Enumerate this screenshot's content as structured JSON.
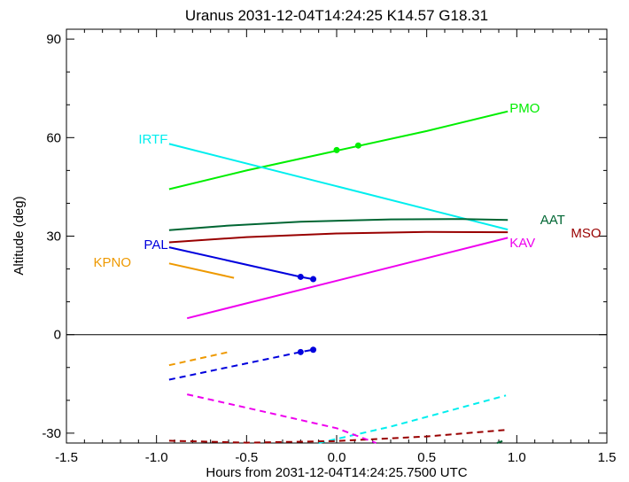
{
  "chart_data": {
    "type": "line",
    "title": "Uranus 2031-12-04T14:24:25  K14.57  G18.31",
    "xlabel": "Hours from 2031-12-04T14:24:25.7500 UTC",
    "ylabel": "Altitude (deg)",
    "xlim": [
      -1.5,
      1.5
    ],
    "ylim": [
      -33,
      93
    ],
    "xticks": [
      -1.5,
      -1.0,
      -0.5,
      0.0,
      0.5,
      1.0,
      1.5
    ],
    "xtick_labels": [
      "-1.5",
      "-1.0",
      "-0.5",
      "0.0",
      "0.5",
      "1.0",
      "1.5"
    ],
    "yticks": [
      -30,
      0,
      30,
      60,
      90
    ],
    "ytick_labels": [
      "-30",
      "0",
      "30",
      "60",
      "90"
    ],
    "zero_line": 0,
    "series": [
      {
        "name": "PMO",
        "color": "#00ee00",
        "solid": [
          [
            -0.93,
            44.3
          ],
          [
            -0.5,
            50.0
          ],
          [
            0.0,
            56.0
          ],
          [
            0.5,
            62.0
          ],
          [
            0.95,
            68.0
          ]
        ],
        "dashed": [],
        "markers": [
          [
            0.0,
            56.2
          ],
          [
            0.12,
            57.6
          ]
        ],
        "label": "PMO",
        "label_pos": [
          0.96,
          69.0
        ]
      },
      {
        "name": "IRTF",
        "color": "#00eeee",
        "solid": [
          [
            -0.93,
            58.1
          ],
          [
            0.0,
            45.2
          ],
          [
            0.95,
            32.0
          ]
        ],
        "dashed": [
          [
            -0.1,
            -33.0
          ],
          [
            0.3,
            -28.0
          ],
          [
            0.94,
            -18.5
          ]
        ],
        "markers": [],
        "label": "IRTF",
        "label_pos": [
          -1.1,
          59.5
        ]
      },
      {
        "name": "AAT",
        "color": "#006633",
        "solid": [
          [
            -0.93,
            31.8
          ],
          [
            -0.6,
            33.2
          ],
          [
            -0.2,
            34.4
          ],
          [
            0.3,
            35.1
          ],
          [
            0.7,
            35.2
          ],
          [
            0.95,
            34.9
          ]
        ],
        "dashed": [
          [
            0.89,
            -33.0
          ],
          [
            0.92,
            -32.4
          ]
        ],
        "markers": [],
        "label": "AAT",
        "label_pos": [
          1.13,
          35.0
        ]
      },
      {
        "name": "MSO",
        "color": "#990000",
        "solid": [
          [
            -0.93,
            28.1
          ],
          [
            -0.5,
            29.7
          ],
          [
            0.0,
            30.8
          ],
          [
            0.5,
            31.3
          ],
          [
            0.95,
            31.2
          ]
        ],
        "dashed": [
          [
            -0.93,
            -32.3
          ],
          [
            -0.5,
            -32.9
          ],
          [
            0.0,
            -32.4
          ],
          [
            0.5,
            -31.0
          ],
          [
            0.94,
            -29.0
          ]
        ],
        "markers": [],
        "label": "MSO",
        "label_pos": [
          1.3,
          31.0
        ]
      },
      {
        "name": "KAV",
        "color": "#ee00ee",
        "solid": [
          [
            -0.83,
            5.0
          ],
          [
            0.95,
            29.5
          ]
        ],
        "dashed": [
          [
            -0.83,
            -18.2
          ],
          [
            -0.4,
            -23.5
          ],
          [
            0.0,
            -28.5
          ],
          [
            0.22,
            -33.0
          ]
        ],
        "markers": [],
        "label": "KAV",
        "label_pos": [
          0.96,
          28.0
        ]
      },
      {
        "name": "PAL",
        "color": "#0000dd",
        "solid": [
          [
            -0.93,
            26.6
          ],
          [
            -0.2,
            17.6
          ],
          [
            -0.13,
            16.9
          ]
        ],
        "dashed": [
          [
            -0.93,
            -13.7
          ],
          [
            -0.2,
            -5.3
          ],
          [
            -0.13,
            -4.6
          ]
        ],
        "markers": [
          [
            -0.2,
            17.6
          ],
          [
            -0.13,
            16.9
          ],
          [
            -0.2,
            -5.3
          ],
          [
            -0.13,
            -4.6
          ]
        ],
        "label": "PAL",
        "label_pos": [
          -1.07,
          27.5
        ]
      },
      {
        "name": "KPNO",
        "color": "#ee9900",
        "solid": [
          [
            -0.93,
            21.7
          ],
          [
            -0.57,
            17.3
          ]
        ],
        "dashed": [
          [
            -0.93,
            -9.3
          ],
          [
            -0.6,
            -5.3
          ]
        ],
        "markers": [],
        "label": "KPNO",
        "label_pos": [
          -1.35,
          22.0
        ]
      }
    ]
  }
}
